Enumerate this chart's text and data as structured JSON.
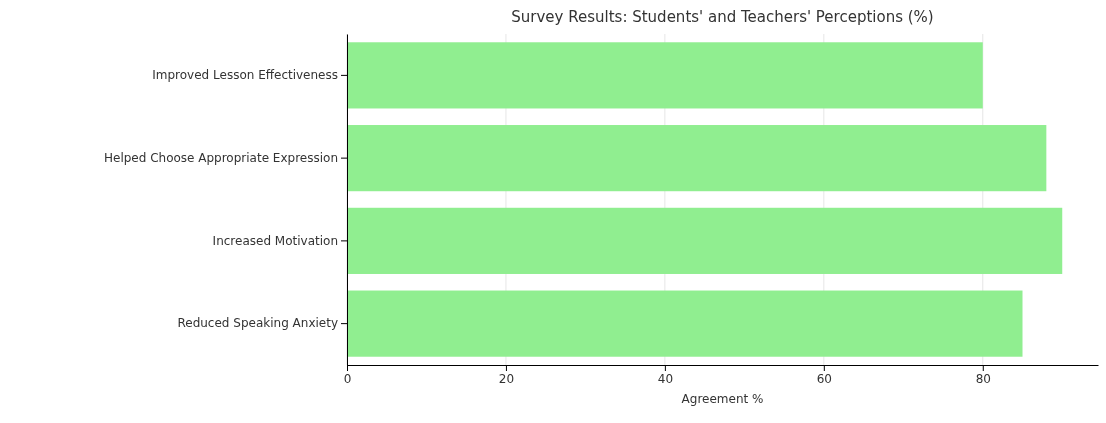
{
  "chart_data": {
    "type": "bar",
    "orientation": "horizontal",
    "title": "Survey Results: Students' and Teachers' Perceptions (%)",
    "xlabel": "Agreement %",
    "categories": [
      "Improved Lesson Effectiveness",
      "Helped Choose Appropriate Expression",
      "Increased Motivation",
      "Reduced Speaking Anxiety"
    ],
    "values": [
      80,
      88,
      90,
      85
    ],
    "color": "#90ee90",
    "xlim": [
      0,
      94.5
    ],
    "xticks": [
      0,
      20,
      40,
      60,
      80
    ],
    "grid": "x"
  }
}
